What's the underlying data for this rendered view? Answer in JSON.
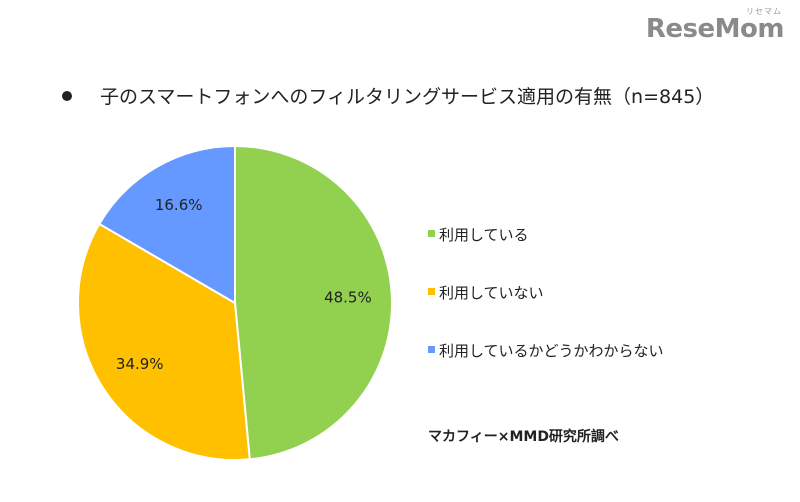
{
  "logo": {
    "text": "ReseMom",
    "ruby": "リセマム"
  },
  "chart_data": {
    "type": "pie",
    "title": "子のスマートフォンへのフィルタリングサービス適用の有無（n=845）",
    "categories": [
      "利用している",
      "利用していない",
      "利用しているかどうかわからない"
    ],
    "values": [
      48.5,
      34.9,
      16.6
    ],
    "value_labels": [
      "48.5%",
      "34.9%",
      "16.6%"
    ],
    "colors": [
      "#92d050",
      "#ffc000",
      "#6699ff"
    ],
    "legend_position": "right"
  },
  "source": "マカフィー×MMD研究所調べ"
}
